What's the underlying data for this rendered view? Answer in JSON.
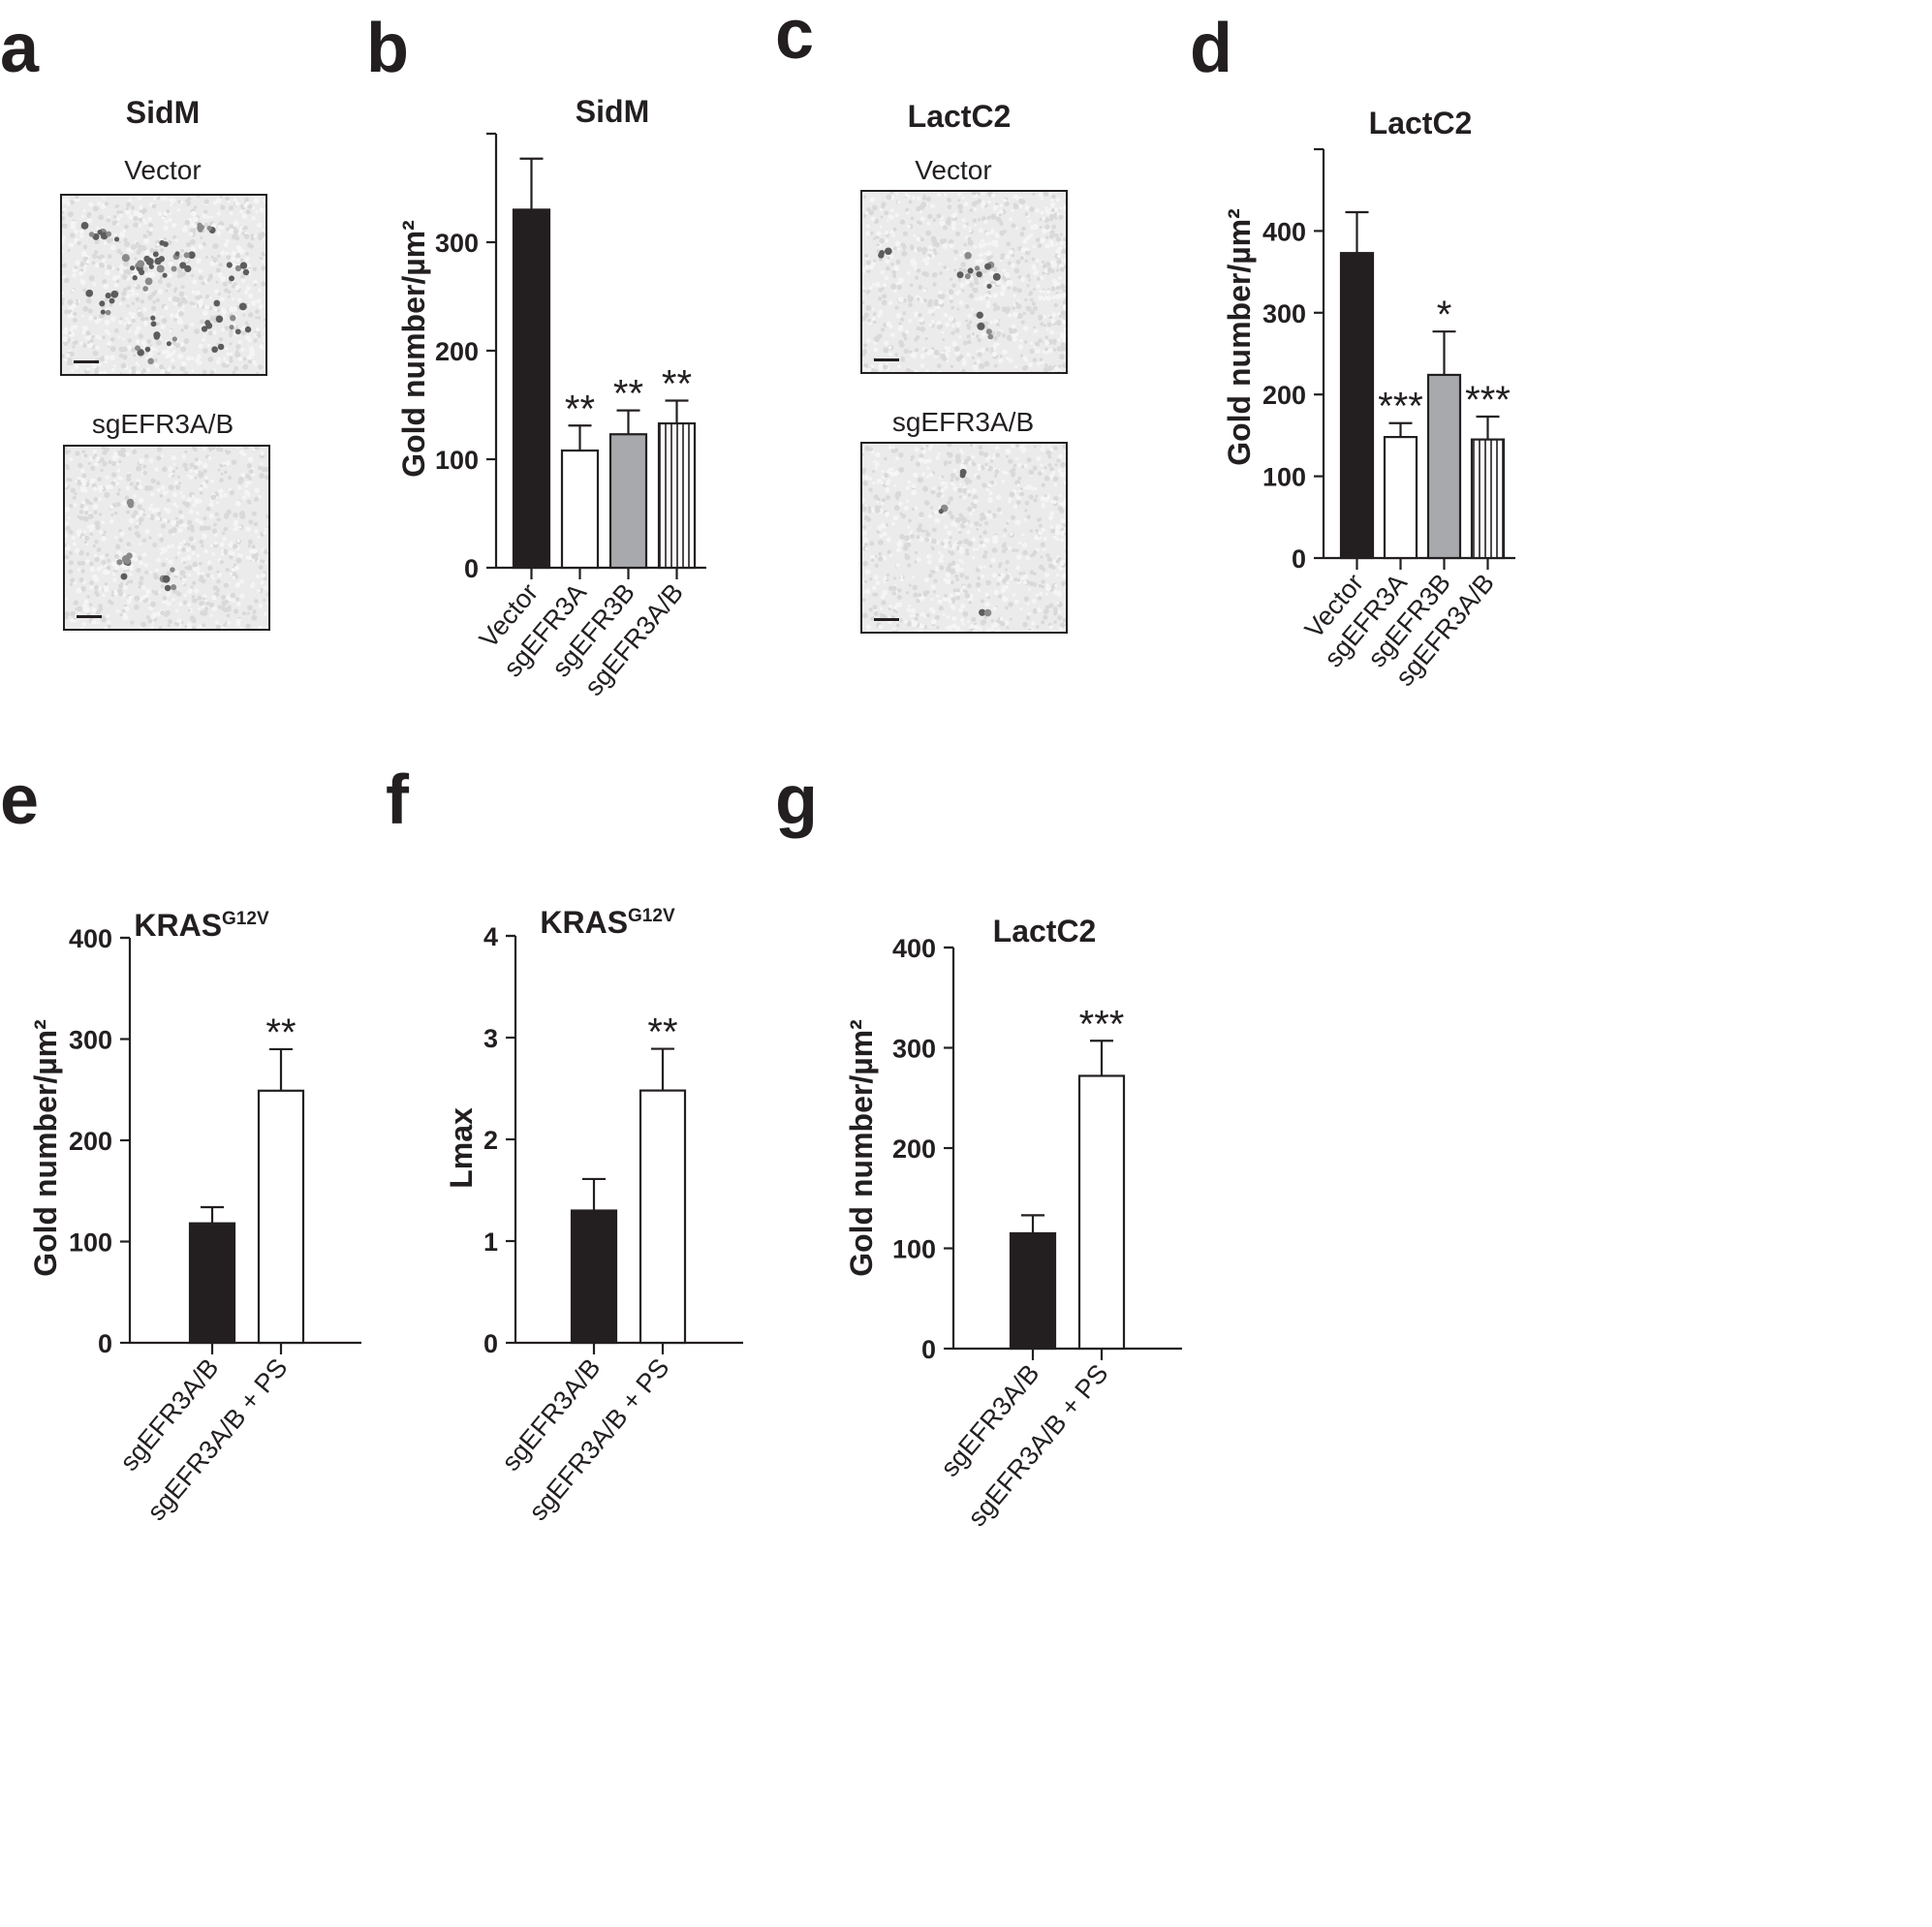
{
  "panels": {
    "a": {
      "label": "a",
      "title": "SidM",
      "top_caption": "Vector",
      "bottom_caption": "sgEFR3A/B"
    },
    "c": {
      "label": "c",
      "title": "LactC2",
      "top_caption": "Vector",
      "bottom_caption": "sgEFR3A/B"
    },
    "b": {
      "label": "b"
    },
    "d": {
      "label": "d"
    },
    "e": {
      "label": "e"
    },
    "f": {
      "label": "f"
    },
    "g": {
      "label": "g"
    }
  },
  "chart_data": [
    {
      "id": "b",
      "type": "bar",
      "title": "SidM",
      "title_sup": "",
      "ylabel": "Gold number/µm²",
      "categories": [
        "Vector",
        "sgEFR3A",
        "sgEFR3B",
        "sgEFR3A/B"
      ],
      "values": [
        330,
        108,
        123,
        133
      ],
      "errors": [
        47,
        23,
        22,
        21
      ],
      "significance": [
        "",
        "**",
        "**",
        "**"
      ],
      "fills": [
        "black",
        "white",
        "gray",
        "stripes"
      ],
      "ylim": [
        0,
        400
      ],
      "yticks": [
        0,
        100,
        200,
        300
      ],
      "xlabel_rotation": -50
    },
    {
      "id": "d",
      "type": "bar",
      "title": "LactC2",
      "title_sup": "",
      "ylabel": "Gold number/µm²",
      "categories": [
        "Vector",
        "sgEFR3A",
        "sgEFR3B",
        "sgEFR3A/B"
      ],
      "values": [
        373,
        148,
        224,
        145
      ],
      "errors": [
        50,
        17,
        53,
        28
      ],
      "significance": [
        "",
        "***",
        "*",
        "***"
      ],
      "fills": [
        "black",
        "white",
        "gray",
        "stripes"
      ],
      "ylim": [
        0,
        500
      ],
      "yticks": [
        0,
        100,
        200,
        300,
        400
      ],
      "xlabel_rotation": -50
    },
    {
      "id": "e",
      "type": "bar",
      "title": "KRAS",
      "title_sup": "G12V",
      "ylabel": "Gold number/µm²",
      "categories": [
        "sgEFR3A/B",
        "sgEFR3A/B + PS"
      ],
      "values": [
        118,
        249
      ],
      "errors": [
        16,
        41
      ],
      "significance": [
        "",
        "**"
      ],
      "fills": [
        "black",
        "white"
      ],
      "ylim": [
        0,
        400
      ],
      "yticks": [
        0,
        100,
        200,
        300,
        400
      ],
      "xlabel_rotation": -50
    },
    {
      "id": "f",
      "type": "bar",
      "title": "KRAS",
      "title_sup": "G12V",
      "ylabel": "Lmax",
      "categories": [
        "sgEFR3A/B",
        "sgEFR3A/B + PS"
      ],
      "values": [
        1.3,
        2.48
      ],
      "errors": [
        0.31,
        0.41
      ],
      "significance": [
        "",
        "**"
      ],
      "fills": [
        "black",
        "white"
      ],
      "ylim": [
        0,
        4
      ],
      "yticks": [
        0,
        1,
        2,
        3,
        4
      ],
      "xlabel_rotation": -50
    },
    {
      "id": "g",
      "type": "bar",
      "title": "LactC2",
      "title_sup": "",
      "ylabel": "Gold number/µm²",
      "categories": [
        "sgEFR3A/B",
        "sgEFR3A/B + PS"
      ],
      "values": [
        115,
        272
      ],
      "errors": [
        18,
        35
      ],
      "significance": [
        "",
        "***"
      ],
      "fills": [
        "black",
        "white"
      ],
      "ylim": [
        0,
        400
      ],
      "yticks": [
        0,
        100,
        200,
        300,
        400
      ],
      "xlabel_rotation": -50
    }
  ]
}
